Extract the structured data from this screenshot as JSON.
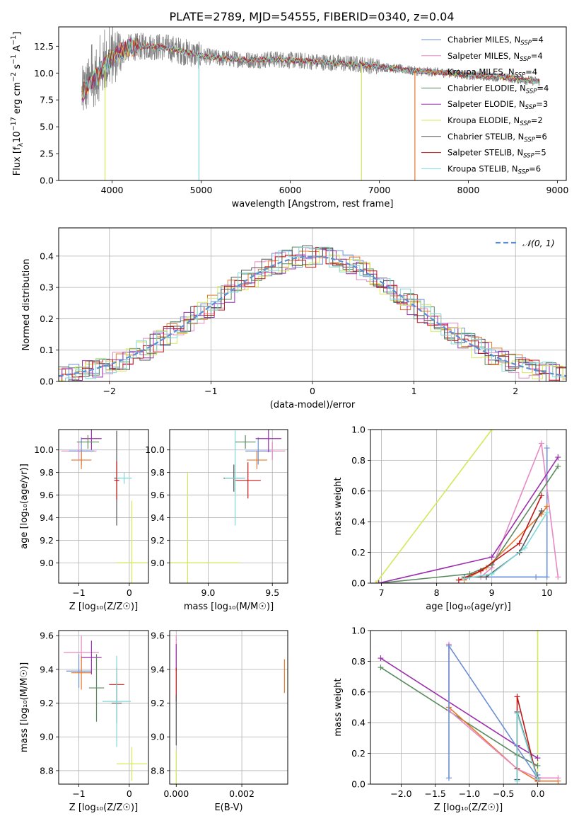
{
  "figure": {
    "title": "PLATE=2789, MJD=54555, FIBERID=0340, z=0.04"
  },
  "colors": {
    "Chabrier MILES": "#6b8fd6",
    "Salpeter MILES": "#e68ac4",
    "Kroupa MILES": "#e8782a",
    "Chabrier ELODIE": "#5a8a5e",
    "Salpeter ELODIE": "#9b2fae",
    "Kroupa ELODIE": "#d4e85a",
    "Chabrier STELIB": "#555555",
    "Salpeter STELIB": "#c01818",
    "Kroupa STELIB": "#7fd8d8",
    "data": "#808080"
  },
  "legend": [
    {
      "label": "Chabrier MILES, N",
      "sub": "SSP",
      "tail": "=4",
      "model": "Chabrier MILES"
    },
    {
      "label": "Salpeter MILES, N",
      "sub": "SSP",
      "tail": "=4",
      "model": "Salpeter MILES"
    },
    {
      "label": "Kroupa MILES, N",
      "sub": "SSP",
      "tail": "=4",
      "model": "Kroupa MILES"
    },
    {
      "label": "Chabrier ELODIE, N",
      "sub": "SSP",
      "tail": "=4",
      "model": "Chabrier ELODIE"
    },
    {
      "label": "Salpeter ELODIE, N",
      "sub": "SSP",
      "tail": "=3",
      "model": "Salpeter ELODIE"
    },
    {
      "label": "Kroupa ELODIE, N",
      "sub": "SSP",
      "tail": "=2",
      "model": "Kroupa ELODIE"
    },
    {
      "label": "Chabrier STELIB, N",
      "sub": "SSP",
      "tail": "=6",
      "model": "Chabrier STELIB"
    },
    {
      "label": "Salpeter STELIB, N",
      "sub": "SSP",
      "tail": "=5",
      "model": "Salpeter STELIB"
    },
    {
      "label": "Kroupa STELIB, N",
      "sub": "SSP",
      "tail": "=6",
      "model": "Kroupa STELIB"
    }
  ],
  "chart_data": [
    {
      "id": "spectrum",
      "type": "line",
      "xlabel": "wavelength [Angstrom, rest frame]",
      "ylabel_parts": {
        "pre": "Flux [f",
        "sub": "λ",
        "mid": "10",
        "sup1": "−17",
        "post": " erg cm",
        "sup2": "−2",
        "post2": " s",
        "sup3": "−1",
        "post3": " A",
        "sup4": "−1",
        "end": "]"
      },
      "xlim": [
        3400,
        9100
      ],
      "ylim": [
        0,
        14.3
      ],
      "xticks": [
        4000,
        5000,
        6000,
        7000,
        8000,
        9000
      ],
      "yticks": [
        0.0,
        2.5,
        5.0,
        7.5,
        10.0,
        12.5
      ],
      "ytick_labels": [
        "0.0",
        "2.5",
        "5.0",
        "7.5",
        "10.0",
        "12.5"
      ],
      "continuum": {
        "x": [
          3650,
          3700,
          3800,
          3900,
          4000,
          4100,
          4200,
          4400,
          4600,
          4800,
          5000,
          5200,
          5400,
          5600,
          5800,
          6000,
          6200,
          6400,
          6600,
          6800,
          7000,
          7200,
          7400,
          7600,
          7800,
          8000,
          8200,
          8400,
          8600,
          8800
        ],
        "y": [
          7.8,
          8.6,
          9.4,
          10.4,
          11.4,
          12.0,
          12.4,
          12.5,
          12.4,
          12.0,
          11.6,
          11.4,
          11.3,
          11.2,
          11.3,
          11.2,
          11.1,
          11.0,
          10.9,
          10.8,
          10.6,
          10.4,
          10.2,
          10.1,
          10.0,
          9.8,
          9.7,
          9.6,
          9.4,
          9.2
        ]
      },
      "dropouts": [
        {
          "model": "Kroupa ELODIE",
          "x": 3920,
          "to": 0
        },
        {
          "model": "Kroupa STELIB",
          "x": 4975,
          "to": 0
        },
        {
          "model": "Kroupa ELODIE",
          "x": 6800,
          "to": 0
        },
        {
          "model": "Kroupa MILES",
          "x": 7400,
          "to": 0
        }
      ]
    },
    {
      "id": "residuals",
      "type": "histogram",
      "xlabel": "(data-model)/error",
      "ylabel": "Normed distribution",
      "xlim": [
        -2.5,
        2.5
      ],
      "ylim": [
        0,
        0.49
      ],
      "xticks": [
        -2,
        -1,
        0,
        1,
        2
      ],
      "xtick_labels": [
        "−2",
        "−1",
        "0",
        "1",
        "2"
      ],
      "yticks": [
        0.0,
        0.1,
        0.2,
        0.3,
        0.4
      ],
      "ytick_labels": [
        "0.0",
        "0.1",
        "0.2",
        "0.3",
        "0.4"
      ],
      "bin_width": 0.1,
      "gaussian_label": "𝒩(0, 1)",
      "gaussian_color": "#5a8fd6"
    },
    {
      "id": "age-vs-Z",
      "type": "scatter",
      "xlabel": "Z [log₁₀(Z/Z☉)]",
      "ylabel": "age  [log₁₀(age/yr)]",
      "xlim": [
        -1.4,
        0.38
      ],
      "ylim": [
        8.82,
        10.18
      ],
      "xticks": [
        -1,
        0
      ],
      "xtick_labels": [
        "−1",
        "0"
      ],
      "yticks": [
        9.0,
        9.2,
        9.4,
        9.6,
        9.8,
        10.0
      ],
      "ytick_labels": [
        "9.0",
        "9.2",
        "9.4",
        "9.6",
        "9.8",
        "10.0"
      ],
      "points": [
        {
          "model": "Salpeter MILES",
          "x": -1.0,
          "y": 9.99,
          "ex": 0.35,
          "ey": 0.08
        },
        {
          "model": "Chabrier MILES",
          "x": -0.95,
          "y": 9.99,
          "ex": 0.25,
          "ey": 0.12
        },
        {
          "model": "Kroupa MILES",
          "x": -0.95,
          "y": 9.91,
          "ex": 0.2,
          "ey": 0.08
        },
        {
          "model": "Salpeter ELODIE",
          "x": -0.75,
          "y": 10.1,
          "ex": 0.2,
          "ey": 0.1
        },
        {
          "model": "Chabrier ELODIE",
          "x": -0.82,
          "y": 10.07,
          "ex": 0.22,
          "ey": 0.06
        },
        {
          "model": "Chabrier STELIB",
          "x": -0.25,
          "y": 9.75,
          "ex": 0.05,
          "ey": 0.42
        },
        {
          "model": "Salpeter STELIB",
          "x": -0.25,
          "y": 9.73,
          "ex": 0.05,
          "ey": 0.17
        },
        {
          "model": "Kroupa STELIB",
          "x": -0.1,
          "y": 9.75,
          "ex": 0.15,
          "ey": 0.05
        },
        {
          "model": "Kroupa ELODIE",
          "x": 0.05,
          "y": 9.0,
          "ex": 0.3,
          "ey": 0.55
        }
      ]
    },
    {
      "id": "age-vs-mass",
      "type": "scatter",
      "xlabel": "mass [log₁₀(M/M☉)]",
      "ylabel": "",
      "xlim": [
        8.7,
        9.62
      ],
      "ylim": [
        8.82,
        10.18
      ],
      "xticks": [
        9.0,
        9.5
      ],
      "xtick_labels": [
        "9.0",
        "9.5"
      ],
      "yticks": [
        9.0,
        9.2,
        9.4,
        9.6,
        9.8,
        10.0
      ],
      "ytick_labels": [
        "9.0",
        "9.2",
        "9.4",
        "9.6",
        "9.8",
        "10.0"
      ],
      "points": [
        {
          "model": "Salpeter MILES",
          "x": 9.5,
          "y": 9.99,
          "ex": 0.1,
          "ey": 0.08
        },
        {
          "model": "Chabrier MILES",
          "x": 9.39,
          "y": 9.99,
          "ex": 0.1,
          "ey": 0.12
        },
        {
          "model": "Kroupa MILES",
          "x": 9.38,
          "y": 9.91,
          "ex": 0.08,
          "ey": 0.08
        },
        {
          "model": "Salpeter ELODIE",
          "x": 9.47,
          "y": 10.1,
          "ex": 0.1,
          "ey": 0.12
        },
        {
          "model": "Chabrier ELODIE",
          "x": 9.29,
          "y": 10.07,
          "ex": 0.08,
          "ey": 0.06
        },
        {
          "model": "Chabrier STELIB",
          "x": 9.2,
          "y": 9.75,
          "ex": 0.08,
          "ey": 0.12
        },
        {
          "model": "Salpeter STELIB",
          "x": 9.31,
          "y": 9.73,
          "ex": 0.1,
          "ey": 0.16
        },
        {
          "model": "Kroupa STELIB",
          "x": 9.21,
          "y": 9.75,
          "ex": 0.08,
          "ey": 0.42
        },
        {
          "model": "Kroupa ELODIE",
          "x": 8.84,
          "y": 9.0,
          "ex": 0.4,
          "ey": 0.8
        }
      ]
    },
    {
      "id": "massweight-vs-age",
      "type": "line",
      "xlabel": "age  [log₁₀(age/yr)]",
      "ylabel": "mass weight",
      "xlim": [
        6.8,
        10.35
      ],
      "ylim": [
        0,
        1.0
      ],
      "xticks": [
        7,
        8,
        9,
        10
      ],
      "xtick_labels": [
        "7",
        "8",
        "9",
        "10"
      ],
      "yticks": [
        0.0,
        0.2,
        0.4,
        0.6,
        0.8,
        1.0
      ],
      "ytick_labels": [
        "0.0",
        "0.2",
        "0.4",
        "0.6",
        "0.8",
        "1.0"
      ],
      "series": [
        {
          "model": "Kroupa ELODIE",
          "x": [
            6.9,
            9.0
          ],
          "y": [
            0.0,
            1.0
          ]
        },
        {
          "model": "Chabrier MILES",
          "x": [
            8.6,
            8.9,
            9.8,
            10.0,
            10.0
          ],
          "y": [
            0.04,
            0.04,
            0.04,
            0.04,
            0.88
          ]
        },
        {
          "model": "Salpeter MILES",
          "x": [
            8.8,
            9.0,
            9.9,
            10.2
          ],
          "y": [
            0.04,
            0.1,
            0.91,
            0.04
          ]
        },
        {
          "model": "Kroupa MILES",
          "x": [
            8.5,
            8.9,
            9.9,
            10.0
          ],
          "y": [
            0.02,
            0.1,
            0.45,
            0.5
          ]
        },
        {
          "model": "Chabrier ELODIE",
          "x": [
            6.95,
            8.6,
            9.0,
            10.2
          ],
          "y": [
            0.0,
            0.06,
            0.12,
            0.76
          ]
        },
        {
          "model": "Salpeter ELODIE",
          "x": [
            6.95,
            9.0,
            10.2
          ],
          "y": [
            0.0,
            0.17,
            0.82
          ]
        },
        {
          "model": "Chabrier STELIB",
          "x": [
            8.5,
            8.9,
            9.5,
            9.9
          ],
          "y": [
            0.04,
            0.04,
            0.2,
            0.47
          ]
        },
        {
          "model": "Salpeter STELIB",
          "x": [
            8.4,
            8.8,
            9.5,
            9.9
          ],
          "y": [
            0.02,
            0.08,
            0.26,
            0.57
          ]
        },
        {
          "model": "Kroupa STELIB",
          "x": [
            8.5,
            9.0,
            9.6,
            10.0
          ],
          "y": [
            0.03,
            0.06,
            0.23,
            0.46
          ]
        }
      ]
    },
    {
      "id": "mass-vs-Z",
      "type": "scatter",
      "xlabel": "Z [log₁₀(Z/Z☉)]",
      "ylabel": "mass [log₁₀(M/M☉)]",
      "xlim": [
        -1.4,
        0.38
      ],
      "ylim": [
        8.72,
        9.63
      ],
      "xticks": [
        -1,
        0
      ],
      "xtick_labels": [
        "−1",
        "0"
      ],
      "yticks": [
        8.8,
        9.0,
        9.2,
        9.4,
        9.6
      ],
      "ytick_labels": [
        "8.8",
        "9.0",
        "9.2",
        "9.4",
        "9.6"
      ],
      "points": [
        {
          "model": "Salpeter MILES",
          "x": -0.95,
          "y": 9.5,
          "ex": 0.35,
          "ey": 0.1
        },
        {
          "model": "Chabrier MILES",
          "x": -1.0,
          "y": 9.39,
          "ex": 0.25,
          "ey": 0.1
        },
        {
          "model": "Kroupa MILES",
          "x": -0.95,
          "y": 9.38,
          "ex": 0.2,
          "ey": 0.1
        },
        {
          "model": "Salpeter ELODIE",
          "x": -0.75,
          "y": 9.47,
          "ex": 0.2,
          "ey": 0.1
        },
        {
          "model": "Chabrier ELODIE",
          "x": -0.65,
          "y": 9.29,
          "ex": 0.15,
          "ey": 0.2
        },
        {
          "model": "Chabrier STELIB",
          "x": -0.25,
          "y": 9.2,
          "ex": 0.1,
          "ey": 0.12
        },
        {
          "model": "Salpeter STELIB",
          "x": -0.25,
          "y": 9.31,
          "ex": 0.15,
          "ey": 0.1
        },
        {
          "model": "Kroupa STELIB",
          "x": -0.25,
          "y": 9.21,
          "ex": 0.28,
          "ey": 0.27
        },
        {
          "model": "Kroupa ELODIE",
          "x": 0.05,
          "y": 8.84,
          "ex": 0.3,
          "ey": 0.1
        }
      ]
    },
    {
      "id": "mass-vs-EBV",
      "type": "scatter",
      "xlabel": "E(B-V)",
      "ylabel": "",
      "xlim": [
        -0.0002,
        0.0034
      ],
      "ylim": [
        8.72,
        9.63
      ],
      "xticks": [
        0.0,
        0.002
      ],
      "xtick_labels": [
        "0.000",
        "0.002"
      ],
      "yticks": [
        8.8,
        9.0,
        9.2,
        9.4,
        9.6
      ],
      "ytick_labels": [
        "8.8",
        "9.0",
        "9.2",
        "9.4",
        "9.6"
      ],
      "points": [
        {
          "model": "Salpeter MILES",
          "x": 0.0,
          "y": 9.5,
          "ex": 0,
          "ey": 0.1
        },
        {
          "model": "Salpeter ELODIE",
          "x": 0.0,
          "y": 9.47,
          "ex": 0,
          "ey": 0.08
        },
        {
          "model": "Salpeter STELIB",
          "x": 0.0,
          "y": 9.31,
          "ex": 0,
          "ey": 0.1
        },
        {
          "model": "Chabrier STELIB",
          "x": 0.0,
          "y": 9.1,
          "ex": 0,
          "ey": 0.15
        },
        {
          "model": "Kroupa ELODIE",
          "x": 0.0,
          "y": 8.82,
          "ex": 0,
          "ey": 0.1
        },
        {
          "model": "Kroupa MILES",
          "x": 0.0033,
          "y": 9.36,
          "ex": 0,
          "ey": 0.1
        }
      ]
    },
    {
      "id": "massweight-vs-Z",
      "type": "line",
      "xlabel": "Z [log₁₀(Z/Z☉)]",
      "ylabel": "mass weight",
      "xlim": [
        -2.45,
        0.42
      ],
      "ylim": [
        0,
        1.0
      ],
      "xticks": [
        -2.0,
        -1.5,
        -1.0,
        -0.5,
        0.0
      ],
      "xtick_labels": [
        "−2.0",
        "−1.5",
        "−1.0",
        "−0.5",
        "0.0"
      ],
      "yticks": [
        0.0,
        0.2,
        0.4,
        0.6,
        0.8,
        1.0
      ],
      "ytick_labels": [
        "0.0",
        "0.2",
        "0.4",
        "0.6",
        "0.8",
        "1.0"
      ],
      "series": [
        {
          "model": "Kroupa ELODIE",
          "x": [
            0.0,
            0.0
          ],
          "y": [
            0.0,
            1.0
          ]
        },
        {
          "model": "Salpeter ELODIE",
          "x": [
            -2.3,
            -0.3,
            0.0
          ],
          "y": [
            0.82,
            0.25,
            0.17
          ]
        },
        {
          "model": "Chabrier ELODIE",
          "x": [
            -2.3,
            -0.3,
            0.0
          ],
          "y": [
            0.76,
            0.19,
            0.12
          ]
        },
        {
          "model": "Kroupa MILES",
          "x": [
            -1.3,
            -0.3,
            0.0,
            0.3
          ],
          "y": [
            0.5,
            0.1,
            0.02,
            0.02
          ]
        },
        {
          "model": "Salpeter MILES",
          "x": [
            -1.3,
            -1.3,
            -0.3,
            0.0,
            0.3
          ],
          "y": [
            0.91,
            0.48,
            0.1,
            0.04,
            0.04
          ]
        },
        {
          "model": "Chabrier MILES",
          "x": [
            -1.3,
            -1.3,
            0.0,
            0.0
          ],
          "y": [
            0.04,
            0.9,
            0.04,
            0.06
          ]
        },
        {
          "model": "Chabrier STELIB",
          "x": [
            -0.3,
            -0.3,
            0.0
          ],
          "y": [
            0.03,
            0.47,
            0.04
          ]
        },
        {
          "model": "Salpeter STELIB",
          "x": [
            -0.3,
            -0.3,
            0.0
          ],
          "y": [
            0.1,
            0.57,
            0.02
          ]
        },
        {
          "model": "Kroupa STELIB",
          "x": [
            -0.3,
            -0.3,
            0.0
          ],
          "y": [
            0.02,
            0.46,
            0.03
          ]
        }
      ]
    }
  ]
}
